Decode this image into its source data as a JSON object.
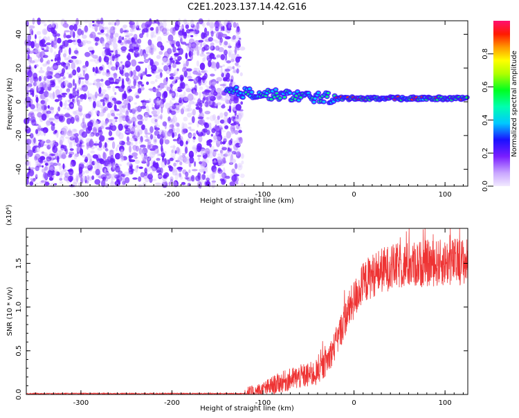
{
  "page": {
    "title": "C2E1.2023.137.14.42.G16"
  },
  "chart_data": [
    {
      "type": "heatmap",
      "title": "C2E1.2023.137.14.42.G16",
      "xlabel": "Height of straight line (km)",
      "ylabel": "Frequency (Hz)",
      "xlim": [
        -360,
        125
      ],
      "ylim": [
        -50,
        48
      ],
      "x_ticks": [
        -300,
        -200,
        -100,
        0,
        100
      ],
      "y_ticks": [
        -40,
        -20,
        0,
        20,
        40
      ],
      "colorbar": {
        "label": "Normalized spectral amplitude",
        "range": [
          0,
          1
        ],
        "ticks": [
          0.0,
          0.2,
          0.4,
          0.6,
          0.8
        ]
      },
      "features": {
        "noise_region_x": [
          -360,
          -130
        ],
        "signal_line_frequency_hz": 2,
        "signal_line_start_x": -140
      }
    },
    {
      "type": "line",
      "xlabel": "Height of straight line (km)",
      "ylabel": "SNR (10 * v/v)",
      "y_scale_label": "(x10⁴)",
      "xlim": [
        -360,
        125
      ],
      "ylim": [
        0,
        1.9
      ],
      "x_ticks": [
        -300,
        -200,
        -100,
        0,
        100
      ],
      "y_ticks": [
        0.0,
        0.5,
        1.0,
        1.5
      ],
      "series": [
        {
          "color": "#ee3333",
          "x": [
            -360,
            -300,
            -250,
            -200,
            -150,
            -120,
            -110,
            -100,
            -90,
            -80,
            -70,
            -60,
            -50,
            -40,
            -35,
            -30,
            -25,
            -20,
            -15,
            -10,
            -5,
            0,
            5,
            10,
            15,
            20,
            25,
            30,
            40,
            50,
            60,
            70,
            80,
            90,
            100,
            110,
            120,
            125
          ],
          "y": [
            0.01,
            0.01,
            0.01,
            0.01,
            0.01,
            0.01,
            0.02,
            0.05,
            0.1,
            0.14,
            0.17,
            0.2,
            0.22,
            0.25,
            0.3,
            0.38,
            0.48,
            0.58,
            0.72,
            0.86,
            0.98,
            1.08,
            1.18,
            1.26,
            1.32,
            1.36,
            1.39,
            1.42,
            1.45,
            1.47,
            1.48,
            1.49,
            1.5,
            1.5,
            1.51,
            1.52,
            1.52,
            1.52
          ]
        }
      ]
    }
  ]
}
